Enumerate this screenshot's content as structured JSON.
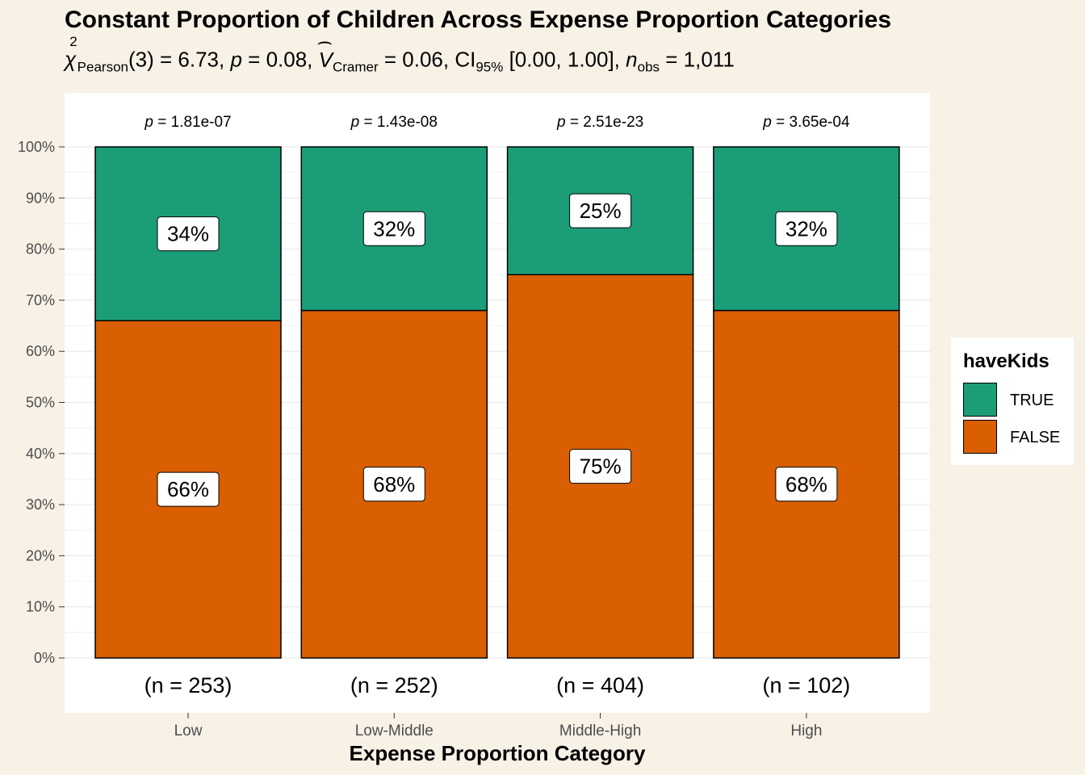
{
  "chart_data": {
    "type": "bar",
    "stacked": true,
    "percent": true,
    "title": "Constant Proportion of Children Across Expense Proportion Categories",
    "subtitle": {
      "chi_sym": "χ",
      "chi_sup": "2",
      "chi_sub": "Pearson",
      "chi_df": "(3)",
      "chi_value": " = 6.73, ",
      "p_sym": "p",
      "p_value": " = 0.08, ",
      "v_sym": "V",
      "v_sub": "Cramer",
      "v_value": " = 0.06, CI",
      "ci_sub": "95%",
      "ci_value": " [0.00, 1.00], ",
      "n_sym": "n",
      "n_sub": "obs",
      "n_value": " = 1,011"
    },
    "xlabel": "Expense Proportion Category",
    "ylabel": "",
    "ylim": [
      0,
      100
    ],
    "yticks": [
      "0%",
      "10%",
      "20%",
      "30%",
      "40%",
      "50%",
      "60%",
      "70%",
      "80%",
      "90%",
      "100%"
    ],
    "categories": [
      "Low",
      "Low-Middle",
      "Middle-High",
      "High"
    ],
    "series": [
      {
        "name": "FALSE",
        "color": "#D95F02",
        "values": [
          66,
          68,
          75,
          68
        ],
        "labels": [
          "66%",
          "68%",
          "75%",
          "68%"
        ]
      },
      {
        "name": "TRUE",
        "color": "#1B9E77",
        "values": [
          34,
          32,
          25,
          32
        ],
        "labels": [
          "34%",
          "32%",
          "25%",
          "32%"
        ]
      }
    ],
    "top_annotations": [
      "1.81e-07",
      "1.43e-08",
      "2.51e-23",
      "3.65e-04"
    ],
    "top_annotation_prefix": "p",
    "top_annotation_eq": " = ",
    "counts": [
      "(n = 253)",
      "(n = 252)",
      "(n = 404)",
      "(n = 102)"
    ],
    "grid": true,
    "legend": {
      "title": "haveKids",
      "position": "right",
      "entries": [
        {
          "label": "TRUE",
          "color": "#1B9E77"
        },
        {
          "label": "FALSE",
          "color": "#D95F02"
        }
      ]
    },
    "colors": {
      "background": "#F8F1E6",
      "panel": "#FFFFFF",
      "false": "#D95F02",
      "true": "#1B9E77"
    }
  }
}
